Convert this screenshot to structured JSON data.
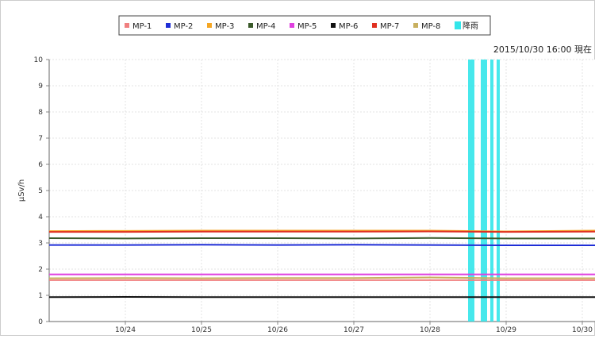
{
  "chart_data": {
    "type": "line",
    "title": "2015/10/30 16:00 現在",
    "xlabel": "",
    "ylabel": "μSv/h",
    "ylim": [
      0,
      10
    ],
    "y_ticks": [
      "0",
      "1",
      "2",
      "3",
      "4",
      "5",
      "6",
      "7",
      "8",
      "9",
      "10"
    ],
    "x_ticks": [
      "10/24",
      "10/25",
      "10/26",
      "10/27",
      "10/28",
      "10/29",
      "10/30"
    ],
    "xlim": [
      "10/23 12:00",
      "10/30 16:00"
    ],
    "grid": true,
    "legend_position": "top",
    "series": [
      {
        "name": "MP-1",
        "color": "#f08080",
        "values": [
          1.58,
          1.58,
          1.58,
          1.58,
          1.58,
          1.58,
          1.58,
          1.58
        ]
      },
      {
        "name": "MP-2",
        "color": "#1f2ed6",
        "values": [
          2.92,
          2.92,
          2.93,
          2.92,
          2.93,
          2.92,
          2.91,
          2.91
        ]
      },
      {
        "name": "MP-3",
        "color": "#f5a623",
        "values": [
          3.45,
          3.46,
          3.47,
          3.47,
          3.47,
          3.47,
          3.44,
          3.47
        ]
      },
      {
        "name": "MP-4",
        "color": "#3a5a2a",
        "values": [
          3.18,
          3.17,
          3.18,
          3.18,
          3.17,
          3.19,
          3.17,
          3.17
        ]
      },
      {
        "name": "MP-5",
        "color": "#e040e0",
        "values": [
          1.8,
          1.8,
          1.8,
          1.8,
          1.8,
          1.8,
          1.8,
          1.8
        ]
      },
      {
        "name": "MP-6",
        "color": "#111111",
        "values": [
          0.93,
          0.94,
          0.93,
          0.93,
          0.93,
          0.93,
          0.93,
          0.93
        ]
      },
      {
        "name": "MP-7",
        "color": "#e03020",
        "values": [
          3.42,
          3.42,
          3.43,
          3.43,
          3.43,
          3.44,
          3.42,
          3.43
        ]
      },
      {
        "name": "MP-8",
        "color": "#c8b060",
        "values": [
          1.65,
          1.66,
          1.65,
          1.66,
          1.66,
          1.68,
          1.65,
          1.65
        ]
      }
    ],
    "x": [
      "10/23 12:00",
      "10/24 12:00",
      "10/25 12:00",
      "10/26 12:00",
      "10/27 12:00",
      "10/28 12:00",
      "10/29 12:00",
      "10/30 16:00"
    ],
    "rainfall": {
      "name": "降雨",
      "color": "#33e6ea",
      "periods": [
        [
          "10/29 00:00",
          "10/29 02:00"
        ],
        [
          "10/29 04:00",
          "10/29 06:00"
        ],
        [
          "10/29 07:00",
          "10/29 08:00"
        ],
        [
          "10/29 09:00",
          "10/29 10:00"
        ]
      ]
    }
  }
}
